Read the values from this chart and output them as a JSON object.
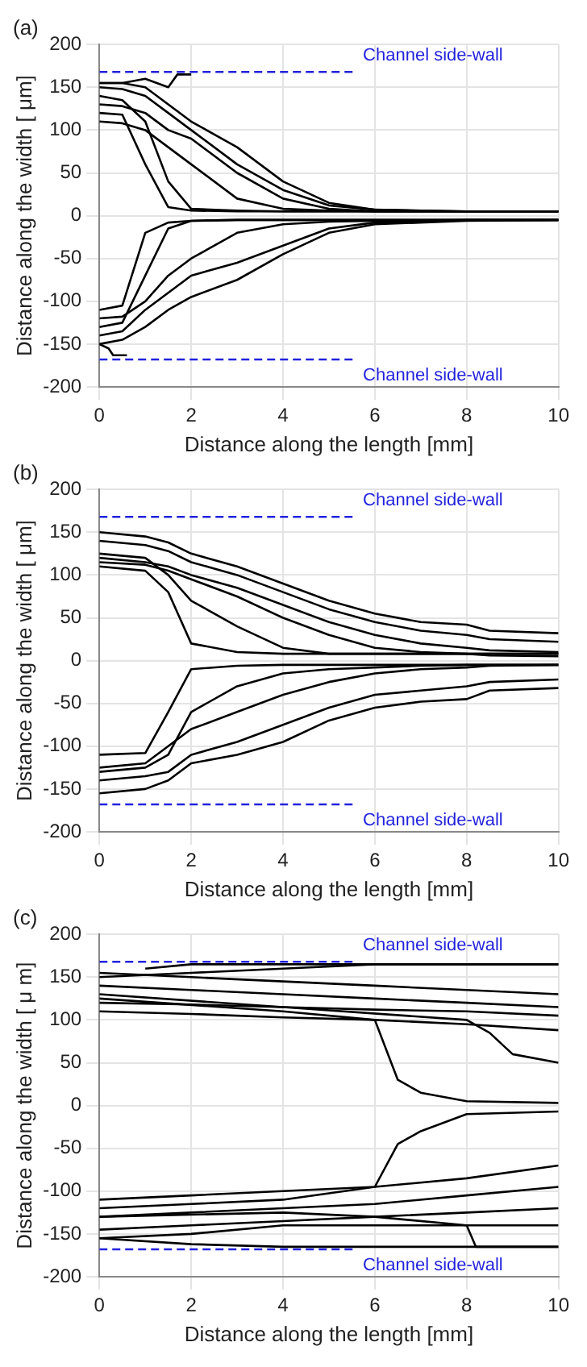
{
  "chart_data": [
    {
      "type": "line",
      "title": "(a)",
      "xlabel": "Distance along the length [mm]",
      "ylabel": "Distance along the width [ μm]",
      "xlim": [
        0,
        10
      ],
      "ylim": [
        -200,
        200
      ],
      "xticks": [
        0,
        2,
        4,
        6,
        8,
        10
      ],
      "yticks": [
        -200,
        -150,
        -100,
        -50,
        0,
        50,
        100,
        150,
        200
      ],
      "grid": true,
      "annotations": [
        "Channel side-wall",
        "Channel side-wall"
      ],
      "series": [
        {
          "color": "#2222dd",
          "line_style": "dashed",
          "x": [
            0,
            5.6
          ],
          "values": [
            168,
            168
          ]
        },
        {
          "color": "#2222dd",
          "line_style": "dashed",
          "x": [
            0,
            5.6
          ],
          "values": [
            -168,
            -168
          ]
        },
        {
          "color": "#000000",
          "x": [
            0,
            0.5,
            1,
            1.5,
            2,
            3,
            4,
            5,
            6,
            8,
            10
          ],
          "values": [
            150,
            148,
            140,
            120,
            100,
            60,
            30,
            12,
            7,
            5,
            5
          ]
        },
        {
          "color": "#000000",
          "x": [
            0,
            0.5,
            1,
            1.5,
            2,
            3,
            4,
            5,
            6,
            8,
            10
          ],
          "values": [
            140,
            135,
            110,
            40,
            8,
            6,
            5,
            5,
            5,
            5,
            5
          ]
        },
        {
          "color": "#000000",
          "x": [
            0,
            0.5,
            1,
            1.5,
            2,
            3,
            4,
            5,
            6,
            8,
            10
          ],
          "values": [
            120,
            118,
            60,
            10,
            6,
            5,
            5,
            5,
            5,
            5,
            5
          ]
        },
        {
          "color": "#000000",
          "x": [
            0,
            0.5,
            1,
            1.5,
            2,
            3,
            4,
            5,
            6,
            8,
            10
          ],
          "values": [
            110,
            108,
            100,
            80,
            60,
            20,
            8,
            6,
            5,
            5,
            5
          ]
        },
        {
          "color": "#000000",
          "x": [
            0,
            0.5,
            1,
            1.5,
            2,
            3,
            4,
            5,
            6,
            8,
            10
          ],
          "values": [
            130,
            128,
            120,
            100,
            90,
            50,
            20,
            8,
            5,
            5,
            5
          ]
        },
        {
          "color": "#000000",
          "x": [
            0,
            0.5,
            1,
            1.5,
            2,
            3,
            4,
            5,
            6,
            8,
            10
          ],
          "values": [
            155,
            155,
            150,
            130,
            110,
            80,
            40,
            15,
            7,
            5,
            5
          ]
        },
        {
          "color": "#000000",
          "x": [
            0,
            0.5,
            1,
            1.5,
            1.7,
            2
          ],
          "values": [
            155,
            155,
            160,
            150,
            165,
            165
          ]
        },
        {
          "color": "#000000",
          "x": [
            0,
            0.5,
            1,
            1.5,
            2,
            3,
            4,
            5,
            6,
            8,
            10
          ],
          "values": [
            -110,
            -105,
            -20,
            -8,
            -6,
            -5,
            -5,
            -5,
            -5,
            -5,
            -5
          ]
        },
        {
          "color": "#000000",
          "x": [
            0,
            0.5,
            1,
            1.5,
            2,
            3,
            4,
            5,
            6,
            8,
            10
          ],
          "values": [
            -120,
            -118,
            -100,
            -70,
            -50,
            -20,
            -10,
            -7,
            -6,
            -5,
            -5
          ]
        },
        {
          "color": "#000000",
          "x": [
            0,
            0.5,
            1,
            1.5,
            2,
            3,
            4,
            5,
            6,
            8,
            10
          ],
          "values": [
            -140,
            -135,
            -110,
            -90,
            -70,
            -55,
            -35,
            -15,
            -8,
            -5,
            -5
          ]
        },
        {
          "color": "#000000",
          "x": [
            0,
            0.5,
            1,
            1.5,
            2,
            3,
            4,
            5,
            6,
            8,
            10
          ],
          "values": [
            -150,
            -145,
            -130,
            -110,
            -95,
            -75,
            -45,
            -20,
            -10,
            -6,
            -5
          ]
        },
        {
          "color": "#000000",
          "x": [
            0,
            0.5,
            1,
            1.5,
            2,
            3,
            4,
            5,
            6,
            8,
            10
          ],
          "values": [
            -130,
            -125,
            -70,
            -15,
            -6,
            -5,
            -5,
            -5,
            -5,
            -5,
            -5
          ]
        },
        {
          "color": "#000000",
          "x": [
            0,
            0.2,
            0.3,
            0.6
          ],
          "values": [
            -150,
            -155,
            -163,
            -163
          ]
        }
      ]
    },
    {
      "type": "line",
      "title": "(b)",
      "xlabel": "Distance along the length [mm]",
      "ylabel": "Distance along the width [ μm]",
      "xlim": [
        0,
        10
      ],
      "ylim": [
        -200,
        200
      ],
      "xticks": [
        0,
        2,
        4,
        6,
        8,
        10
      ],
      "yticks": [
        -200,
        -150,
        -100,
        -50,
        0,
        50,
        100,
        150,
        200
      ],
      "grid": true,
      "annotations": [
        "Channel side-wall",
        "Channel side-wall"
      ],
      "series": [
        {
          "color": "#2222dd",
          "line_style": "dashed",
          "x": [
            0,
            5.6
          ],
          "values": [
            168,
            168
          ]
        },
        {
          "color": "#2222dd",
          "line_style": "dashed",
          "x": [
            0,
            5.6
          ],
          "values": [
            -168,
            -168
          ]
        },
        {
          "color": "#000000",
          "x": [
            0,
            1,
            1.5,
            2,
            3,
            4,
            5,
            6,
            7,
            8,
            8.5,
            10
          ],
          "values": [
            150,
            145,
            138,
            125,
            110,
            90,
            70,
            55,
            45,
            42,
            35,
            32
          ]
        },
        {
          "color": "#000000",
          "x": [
            0,
            1,
            1.5,
            2,
            3,
            4,
            5,
            6,
            7,
            8,
            8.5,
            10
          ],
          "values": [
            140,
            135,
            128,
            115,
            100,
            80,
            60,
            45,
            35,
            30,
            25,
            22
          ]
        },
        {
          "color": "#000000",
          "x": [
            0,
            1,
            1.5,
            2,
            3,
            4,
            5,
            6,
            7,
            8,
            8.5,
            10
          ],
          "values": [
            120,
            115,
            110,
            100,
            85,
            65,
            45,
            30,
            20,
            15,
            12,
            10
          ]
        },
        {
          "color": "#000000",
          "x": [
            0,
            1,
            1.5,
            2,
            3,
            4,
            5,
            6,
            7,
            8,
            8.5,
            10
          ],
          "values": [
            110,
            105,
            80,
            20,
            10,
            8,
            8,
            8,
            8,
            8,
            8,
            8
          ]
        },
        {
          "color": "#000000",
          "x": [
            0,
            1,
            1.5,
            2,
            3,
            4,
            5,
            6,
            7,
            8,
            8.5,
            10
          ],
          "values": [
            125,
            120,
            100,
            70,
            40,
            15,
            8,
            8,
            8,
            8,
            8,
            8
          ]
        },
        {
          "color": "#000000",
          "x": [
            0,
            1,
            1.5,
            2,
            3,
            4,
            5,
            6,
            7,
            8,
            8.5,
            10
          ],
          "values": [
            115,
            112,
            105,
            95,
            75,
            50,
            30,
            15,
            10,
            8,
            6,
            5
          ]
        },
        {
          "color": "#000000",
          "x": [
            0,
            1,
            1.5,
            2,
            3,
            4,
            5,
            6,
            7,
            8,
            8.5,
            10
          ],
          "values": [
            -110,
            -108,
            -60,
            -10,
            -6,
            -5,
            -5,
            -5,
            -5,
            -5,
            -5,
            -5
          ]
        },
        {
          "color": "#000000",
          "x": [
            0,
            1,
            1.5,
            2,
            3,
            4,
            5,
            6,
            7,
            8,
            8.5,
            10
          ],
          "values": [
            -125,
            -120,
            -100,
            -80,
            -60,
            -40,
            -25,
            -15,
            -10,
            -8,
            -6,
            -5
          ]
        },
        {
          "color": "#000000",
          "x": [
            0,
            1,
            1.5,
            2,
            3,
            4,
            5,
            6,
            7,
            8,
            8.5,
            10
          ],
          "values": [
            -140,
            -135,
            -130,
            -110,
            -95,
            -75,
            -55,
            -40,
            -35,
            -30,
            -25,
            -22
          ]
        },
        {
          "color": "#000000",
          "x": [
            0,
            1,
            1.5,
            2,
            3,
            4,
            5,
            6,
            7,
            8,
            8.5,
            10
          ],
          "values": [
            -155,
            -150,
            -140,
            -120,
            -110,
            -95,
            -70,
            -55,
            -48,
            -45,
            -35,
            -32
          ]
        },
        {
          "color": "#000000",
          "x": [
            0,
            1,
            1.5,
            2,
            3,
            4,
            5,
            6,
            7,
            8,
            8.5,
            10
          ],
          "values": [
            -130,
            -125,
            -110,
            -60,
            -30,
            -15,
            -10,
            -8,
            -6,
            -5,
            -5,
            -5
          ]
        }
      ]
    },
    {
      "type": "line",
      "title": "(c)",
      "xlabel": "Distance along the length [mm]",
      "ylabel": "Distance along the width [ μ m]",
      "xlim": [
        0,
        10
      ],
      "ylim": [
        -200,
        200
      ],
      "xticks": [
        0,
        2,
        4,
        6,
        8,
        10
      ],
      "yticks": [
        -200,
        -150,
        -100,
        -50,
        0,
        50,
        100,
        150,
        200
      ],
      "grid": true,
      "annotations": [
        "Channel side-wall",
        "Channel side-wall"
      ],
      "series": [
        {
          "color": "#2222dd",
          "line_style": "dashed",
          "x": [
            0,
            5.6
          ],
          "values": [
            168,
            168
          ]
        },
        {
          "color": "#2222dd",
          "line_style": "dashed",
          "x": [
            0,
            5.6
          ],
          "values": [
            -168,
            -168
          ]
        },
        {
          "color": "#000000",
          "x": [
            0,
            2,
            4,
            6,
            8,
            10
          ],
          "values": [
            155,
            150,
            145,
            140,
            135,
            130
          ]
        },
        {
          "color": "#000000",
          "x": [
            0,
            2,
            4,
            6,
            8,
            10
          ],
          "values": [
            140,
            135,
            130,
            125,
            120,
            115
          ]
        },
        {
          "color": "#000000",
          "x": [
            0,
            2,
            4,
            6,
            8,
            10
          ],
          "values": [
            120,
            118,
            115,
            112,
            110,
            105
          ]
        },
        {
          "color": "#000000",
          "x": [
            0,
            2,
            4,
            6,
            8,
            10
          ],
          "values": [
            110,
            107,
            103,
            100,
            95,
            88
          ]
        },
        {
          "color": "#000000",
          "x": [
            0,
            2,
            4,
            6,
            8,
            10
          ],
          "values": [
            150,
            155,
            160,
            165,
            165,
            165
          ]
        },
        {
          "color": "#000000",
          "x": [
            1,
            2,
            4.5,
            10
          ],
          "values": [
            160,
            165,
            165,
            165
          ]
        },
        {
          "color": "#000000",
          "x": [
            0,
            4,
            6,
            6.5,
            7,
            8,
            10
          ],
          "values": [
            125,
            110,
            100,
            30,
            15,
            5,
            3
          ]
        },
        {
          "color": "#000000",
          "x": [
            0,
            4,
            8,
            8.5,
            9,
            10
          ],
          "values": [
            130,
            115,
            100,
            85,
            60,
            50
          ]
        },
        {
          "color": "#000000",
          "x": [
            0,
            2,
            4,
            6,
            8,
            10
          ],
          "values": [
            -110,
            -105,
            -100,
            -95,
            -85,
            -70
          ]
        },
        {
          "color": "#000000",
          "x": [
            0,
            2,
            4,
            6,
            8,
            10
          ],
          "values": [
            -130,
            -125,
            -120,
            -115,
            -105,
            -95
          ]
        },
        {
          "color": "#000000",
          "x": [
            0,
            2,
            4,
            6,
            8,
            10
          ],
          "values": [
            -145,
            -140,
            -135,
            -130,
            -125,
            -120
          ]
        },
        {
          "color": "#000000",
          "x": [
            0,
            2,
            4,
            6,
            8,
            10
          ],
          "values": [
            -155,
            -150,
            -140,
            -140,
            -140,
            -140
          ]
        },
        {
          "color": "#000000",
          "x": [
            0,
            2,
            4,
            6,
            6.5,
            7,
            8,
            10
          ],
          "values": [
            -120,
            -115,
            -110,
            -95,
            -45,
            -30,
            -10,
            -7
          ]
        },
        {
          "color": "#000000",
          "x": [
            0,
            2,
            4,
            10
          ],
          "values": [
            -155,
            -162,
            -165,
            -165
          ]
        },
        {
          "color": "#000000",
          "x": [
            0,
            4,
            6,
            8,
            8.2,
            10
          ],
          "values": [
            -130,
            -125,
            -130,
            -140,
            -165,
            -165
          ]
        }
      ]
    }
  ]
}
